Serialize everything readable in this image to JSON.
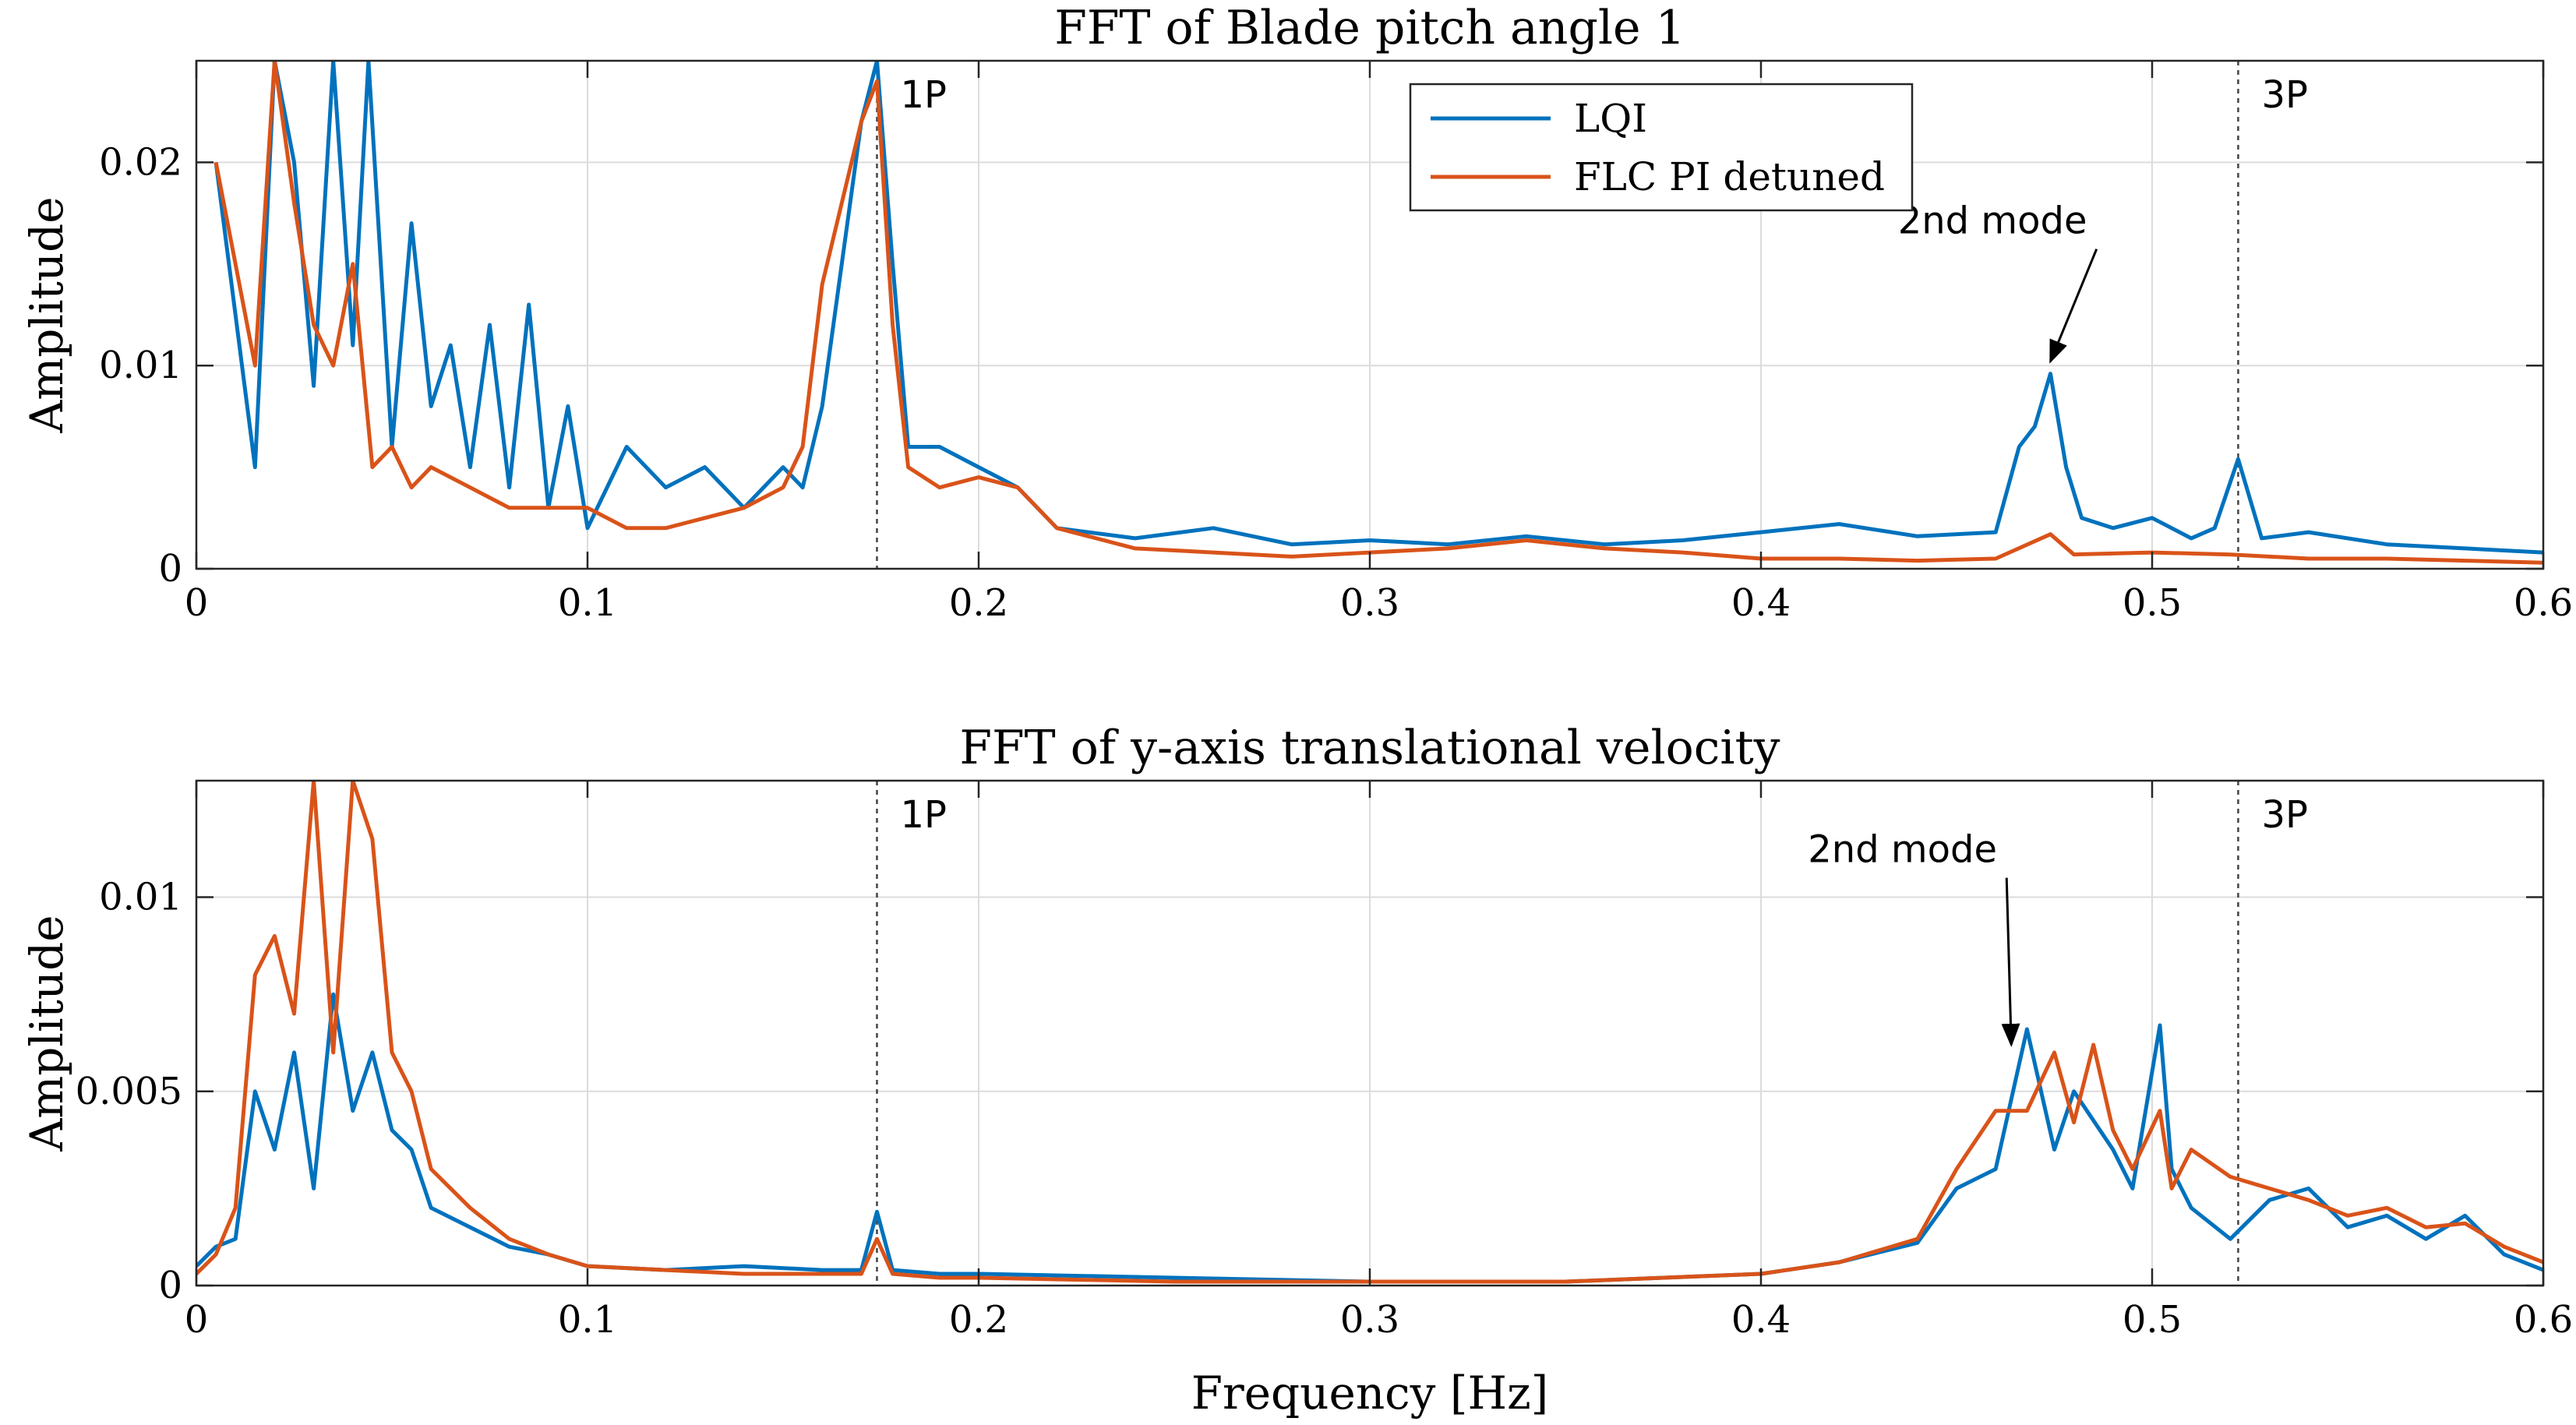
{
  "chart_data": [
    {
      "type": "line",
      "title": "FFT of Blade pitch angle 1",
      "xlabel": "",
      "ylabel": "Amplitude",
      "xlim": [
        0,
        0.6
      ],
      "ylim": [
        0,
        0.025
      ],
      "xticks": [
        0,
        0.1,
        0.2,
        0.3,
        0.4,
        0.5,
        0.6
      ],
      "xtick_labels": [
        "0",
        "0.1",
        "0.2",
        "0.3",
        "0.4",
        "0.5",
        "0.6"
      ],
      "yticks": [
        0,
        0.01,
        0.02
      ],
      "ytick_labels": [
        "0",
        "0.01",
        "0.02"
      ],
      "grid": true,
      "legend": {
        "placement": "top-right",
        "entries": [
          "LQI",
          "FLC PI detuned"
        ]
      },
      "vlines": [
        {
          "x": 0.174,
          "label": "1P"
        },
        {
          "x": 0.522,
          "label": "3P"
        }
      ],
      "annotations": [
        {
          "text": "2nd mode",
          "text_x": 0.435,
          "text_y": 0.0165,
          "target_x": 0.474,
          "target_y": 0.0102
        }
      ],
      "series": [
        {
          "name": "LQI",
          "color": "#0072BD",
          "x": [
            0.005,
            0.015,
            0.02,
            0.025,
            0.03,
            0.035,
            0.04,
            0.044,
            0.05,
            0.055,
            0.06,
            0.065,
            0.07,
            0.075,
            0.08,
            0.085,
            0.09,
            0.095,
            0.1,
            0.11,
            0.12,
            0.13,
            0.14,
            0.15,
            0.155,
            0.16,
            0.165,
            0.17,
            0.174,
            0.178,
            0.182,
            0.19,
            0.2,
            0.21,
            0.22,
            0.24,
            0.26,
            0.28,
            0.3,
            0.32,
            0.34,
            0.36,
            0.38,
            0.4,
            0.42,
            0.44,
            0.46,
            0.466,
            0.47,
            0.474,
            0.478,
            0.482,
            0.49,
            0.5,
            0.51,
            0.516,
            0.522,
            0.528,
            0.54,
            0.56,
            0.58,
            0.6
          ],
          "values": [
            0.02,
            0.005,
            0.025,
            0.02,
            0.009,
            0.025,
            0.011,
            0.025,
            0.006,
            0.017,
            0.008,
            0.011,
            0.005,
            0.012,
            0.004,
            0.013,
            0.003,
            0.008,
            0.002,
            0.006,
            0.004,
            0.005,
            0.003,
            0.005,
            0.004,
            0.008,
            0.015,
            0.022,
            0.025,
            0.015,
            0.006,
            0.006,
            0.005,
            0.004,
            0.002,
            0.0015,
            0.002,
            0.0012,
            0.0014,
            0.0012,
            0.0016,
            0.0012,
            0.0014,
            0.0018,
            0.0022,
            0.0016,
            0.0018,
            0.006,
            0.007,
            0.0096,
            0.005,
            0.0025,
            0.002,
            0.0025,
            0.0015,
            0.002,
            0.0054,
            0.0015,
            0.0018,
            0.0012,
            0.001,
            0.0008
          ]
        },
        {
          "name": "FLC PI detuned",
          "color": "#D95319",
          "x": [
            0.005,
            0.015,
            0.02,
            0.025,
            0.03,
            0.035,
            0.04,
            0.045,
            0.05,
            0.055,
            0.06,
            0.07,
            0.08,
            0.09,
            0.1,
            0.11,
            0.12,
            0.13,
            0.14,
            0.15,
            0.155,
            0.16,
            0.165,
            0.17,
            0.174,
            0.178,
            0.182,
            0.19,
            0.2,
            0.21,
            0.22,
            0.24,
            0.26,
            0.28,
            0.3,
            0.32,
            0.34,
            0.36,
            0.38,
            0.4,
            0.42,
            0.44,
            0.46,
            0.474,
            0.48,
            0.5,
            0.52,
            0.54,
            0.56,
            0.58,
            0.6
          ],
          "values": [
            0.02,
            0.01,
            0.025,
            0.018,
            0.012,
            0.01,
            0.015,
            0.005,
            0.006,
            0.004,
            0.005,
            0.004,
            0.003,
            0.003,
            0.003,
            0.002,
            0.002,
            0.0025,
            0.003,
            0.004,
            0.006,
            0.014,
            0.018,
            0.022,
            0.024,
            0.012,
            0.005,
            0.004,
            0.0045,
            0.004,
            0.002,
            0.001,
            0.0008,
            0.0006,
            0.0008,
            0.001,
            0.0014,
            0.001,
            0.0008,
            0.0005,
            0.0005,
            0.0004,
            0.0005,
            0.0017,
            0.0007,
            0.0008,
            0.0007,
            0.0005,
            0.0005,
            0.0004,
            0.0003
          ]
        }
      ]
    },
    {
      "type": "line",
      "title": "FFT of y-axis translational velocity",
      "xlabel": "Frequency [Hz]",
      "ylabel": "Amplitude",
      "xlim": [
        0,
        0.6
      ],
      "ylim": [
        0,
        0.013
      ],
      "xticks": [
        0,
        0.1,
        0.2,
        0.3,
        0.4,
        0.5,
        0.6
      ],
      "xtick_labels": [
        "0",
        "0.1",
        "0.2",
        "0.3",
        "0.4",
        "0.5",
        "0.6"
      ],
      "yticks": [
        0,
        0.005,
        0.01
      ],
      "ytick_labels": [
        "0",
        "0.005",
        "0.01"
      ],
      "grid": true,
      "vlines": [
        {
          "x": 0.174,
          "label": "1P"
        },
        {
          "x": 0.522,
          "label": "3P"
        }
      ],
      "annotations": [
        {
          "text": "2nd mode",
          "text_x": 0.412,
          "text_y": 0.0109,
          "target_x": 0.464,
          "target_y": 0.0062
        }
      ],
      "series": [
        {
          "name": "LQI",
          "color": "#0072BD",
          "x": [
            0,
            0.005,
            0.01,
            0.015,
            0.02,
            0.025,
            0.03,
            0.035,
            0.04,
            0.045,
            0.05,
            0.055,
            0.06,
            0.07,
            0.08,
            0.09,
            0.1,
            0.12,
            0.14,
            0.16,
            0.17,
            0.174,
            0.178,
            0.19,
            0.2,
            0.25,
            0.3,
            0.35,
            0.4,
            0.42,
            0.44,
            0.45,
            0.46,
            0.468,
            0.475,
            0.48,
            0.49,
            0.495,
            0.502,
            0.505,
            0.51,
            0.52,
            0.53,
            0.54,
            0.55,
            0.56,
            0.57,
            0.58,
            0.59,
            0.6
          ],
          "values": [
            0.0005,
            0.001,
            0.0012,
            0.005,
            0.0035,
            0.006,
            0.0025,
            0.0075,
            0.0045,
            0.006,
            0.004,
            0.0035,
            0.002,
            0.0015,
            0.001,
            0.0008,
            0.0005,
            0.0004,
            0.0005,
            0.0004,
            0.0004,
            0.0019,
            0.0004,
            0.0003,
            0.0003,
            0.0002,
            0.0001,
            0.0001,
            0.0003,
            0.0006,
            0.0011,
            0.0025,
            0.003,
            0.0066,
            0.0035,
            0.005,
            0.0035,
            0.0025,
            0.0067,
            0.003,
            0.002,
            0.0012,
            0.0022,
            0.0025,
            0.0015,
            0.0018,
            0.0012,
            0.0018,
            0.0008,
            0.0004
          ]
        },
        {
          "name": "FLC PI detuned",
          "color": "#D95319",
          "x": [
            0,
            0.005,
            0.01,
            0.015,
            0.02,
            0.025,
            0.03,
            0.035,
            0.04,
            0.045,
            0.05,
            0.055,
            0.06,
            0.07,
            0.08,
            0.09,
            0.1,
            0.12,
            0.14,
            0.16,
            0.17,
            0.174,
            0.178,
            0.19,
            0.2,
            0.25,
            0.3,
            0.35,
            0.4,
            0.42,
            0.44,
            0.45,
            0.46,
            0.468,
            0.475,
            0.48,
            0.485,
            0.49,
            0.495,
            0.502,
            0.505,
            0.51,
            0.52,
            0.53,
            0.54,
            0.55,
            0.56,
            0.57,
            0.58,
            0.59,
            0.6
          ],
          "values": [
            0.0003,
            0.0008,
            0.002,
            0.008,
            0.009,
            0.007,
            0.013,
            0.006,
            0.013,
            0.0115,
            0.006,
            0.005,
            0.003,
            0.002,
            0.0012,
            0.0008,
            0.0005,
            0.0004,
            0.0003,
            0.0003,
            0.0003,
            0.0012,
            0.0003,
            0.0002,
            0.0002,
            0.0001,
            0.0001,
            0.0001,
            0.0003,
            0.0006,
            0.0012,
            0.003,
            0.0045,
            0.0045,
            0.006,
            0.0042,
            0.0062,
            0.004,
            0.003,
            0.0045,
            0.0025,
            0.0035,
            0.0028,
            0.0025,
            0.0022,
            0.0018,
            0.002,
            0.0015,
            0.0016,
            0.001,
            0.0006
          ]
        }
      ]
    }
  ]
}
